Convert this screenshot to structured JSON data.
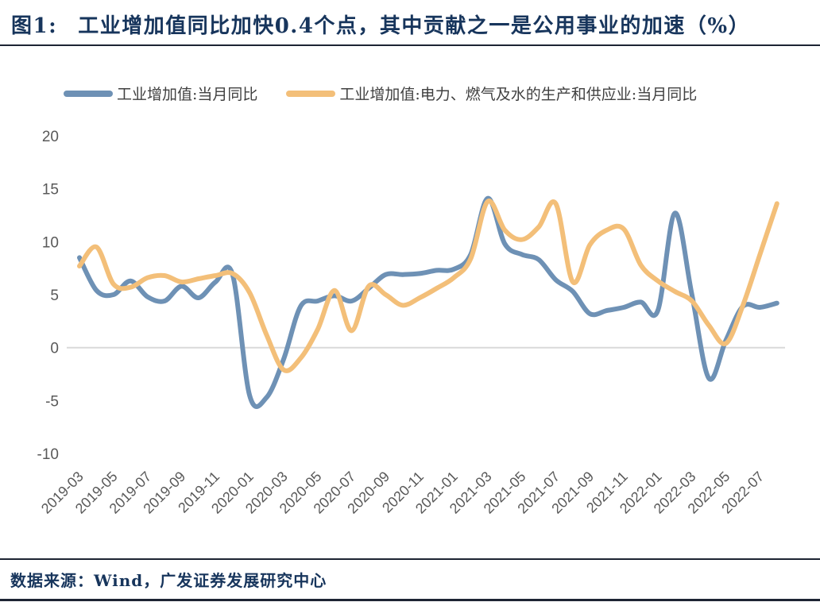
{
  "header": {
    "figure_label": "图1:",
    "title": "工业增加值同比加快0.4个点，其中贡献之一是公用事业的加速（%）"
  },
  "footer": {
    "source": "数据来源：Wind，广发证券发展研究中心"
  },
  "colors": {
    "navy_text": "#17355C",
    "divider": "#1D2433",
    "series_blue": "#6E91B5",
    "series_orange": "#F3BF79",
    "axis_text": "#595959",
    "zero_line": "#D9D9D9",
    "legend_text": "#404040"
  },
  "chart_data": {
    "type": "line",
    "title": "工业增加值同比加快0.4个点，其中贡献之一是公用事业的加速（%）",
    "xlabel": "",
    "ylabel": "",
    "ylim": [
      -10,
      20
    ],
    "yticks": [
      20,
      15,
      10,
      5,
      0,
      -5,
      -10
    ],
    "grid": "single horizontal line at zero only",
    "legend_position": "top",
    "x": [
      "2019-03",
      "2019-04",
      "2019-05",
      "2019-06",
      "2019-07",
      "2019-08",
      "2019-09",
      "2019-10",
      "2019-11",
      "2019-12",
      "2020-01",
      "2020-02",
      "2020-03",
      "2020-04",
      "2020-05",
      "2020-06",
      "2020-07",
      "2020-08",
      "2020-09",
      "2020-10",
      "2020-11",
      "2020-12",
      "2021-01",
      "2021-02",
      "2021-03",
      "2021-04",
      "2021-05",
      "2021-06",
      "2021-07",
      "2021-08",
      "2021-09",
      "2021-10",
      "2021-11",
      "2021-12",
      "2022-01",
      "2022-02",
      "2022-03",
      "2022-04",
      "2022-05",
      "2022-06",
      "2022-07",
      "2022-08"
    ],
    "x_tick_labels": [
      "2019-03",
      "2019-05",
      "2019-07",
      "2019-09",
      "2019-11",
      "2020-01",
      "2020-03",
      "2020-05",
      "2020-07",
      "2020-09",
      "2020-11",
      "2021-01",
      "2021-03",
      "2021-05",
      "2021-07",
      "2021-09",
      "2021-11",
      "2022-01",
      "2022-03",
      "2022-05",
      "2022-07"
    ],
    "series": [
      {
        "name": "工业增加值:当月同比",
        "color_key": "series_blue",
        "values": [
          8.5,
          5.4,
          5.0,
          6.3,
          4.8,
          4.4,
          5.8,
          4.7,
          6.2,
          6.9,
          -4.5,
          -4.7,
          -1.1,
          3.9,
          4.4,
          4.9,
          4.4,
          5.6,
          6.9,
          6.9,
          7.0,
          7.3,
          7.4,
          8.8,
          14.1,
          9.8,
          8.8,
          8.3,
          6.4,
          5.3,
          3.2,
          3.5,
          3.8,
          4.3,
          3.5,
          12.7,
          5.0,
          -2.9,
          0.7,
          3.9,
          3.8,
          4.2
        ]
      },
      {
        "name": "工业增加值:电力、燃气及水的生产和供应业:当月同比",
        "color_key": "series_orange",
        "values": [
          7.7,
          9.5,
          6.0,
          5.7,
          6.6,
          6.8,
          6.2,
          6.5,
          6.8,
          7.0,
          5.2,
          1.2,
          -2.1,
          -1.0,
          1.7,
          5.4,
          1.6,
          5.8,
          5.0,
          4.0,
          4.7,
          5.6,
          6.6,
          8.4,
          13.8,
          11.1,
          10.2,
          11.4,
          13.6,
          6.2,
          9.7,
          11.1,
          11.2,
          7.8,
          6.3,
          5.3,
          4.4,
          2.1,
          0.4,
          4.0,
          8.8,
          13.6
        ]
      }
    ]
  }
}
